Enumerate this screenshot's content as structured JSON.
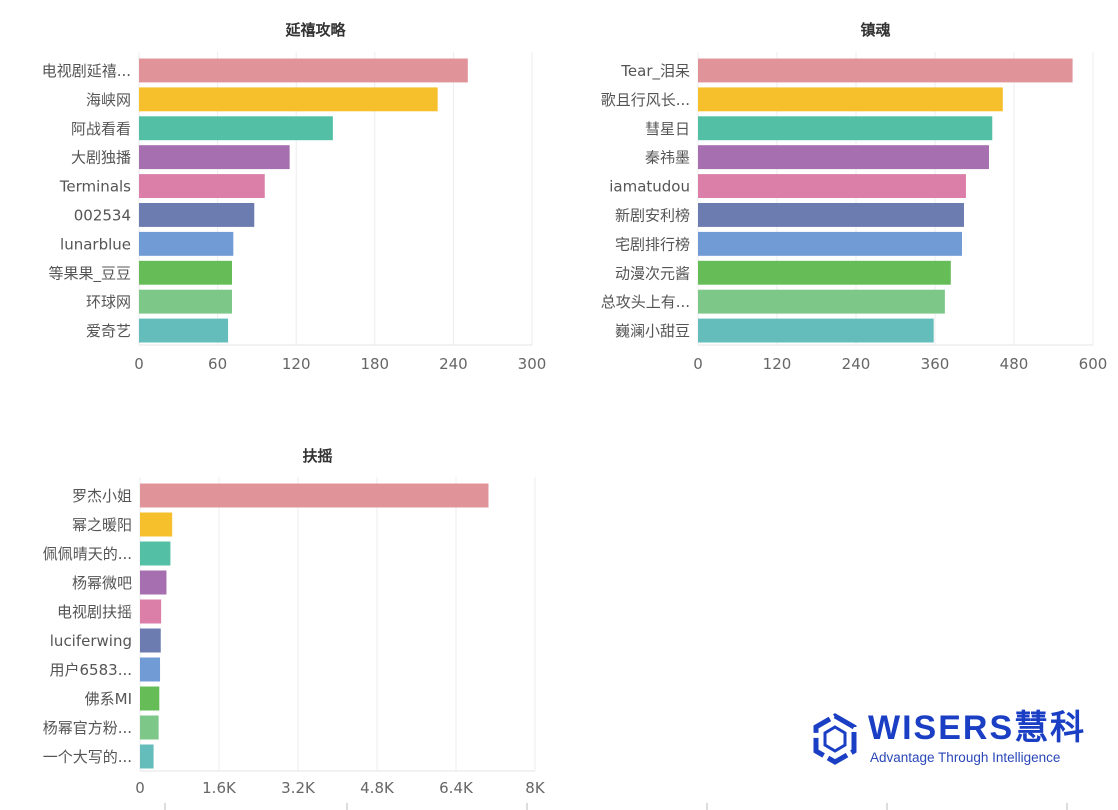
{
  "colors": [
    "#e0949a",
    "#f6c02c",
    "#53c0a6",
    "#a66fb0",
    "#db7fa9",
    "#6c7bb0",
    "#709bd4",
    "#66bd58",
    "#7dc888",
    "#64bcbb"
  ],
  "chart_data": [
    {
      "type": "bar",
      "orientation": "horizontal",
      "title": "延禧攻略",
      "categories": [
        "电视剧延禧...",
        "海峡网",
        "阿战看看",
        "大剧独播",
        "Terminals",
        "002534",
        "lunarblue",
        "等果果_豆豆",
        "环球网",
        "爱奇艺"
      ],
      "values": [
        251,
        228,
        148,
        115,
        96,
        88,
        72,
        71,
        71,
        68
      ],
      "xlim": [
        0,
        300
      ],
      "ticks": [
        0,
        60,
        120,
        180,
        240,
        300
      ],
      "tick_labels": [
        "0",
        "60",
        "120",
        "180",
        "240",
        "300"
      ],
      "grid": true
    },
    {
      "type": "bar",
      "orientation": "horizontal",
      "title": "镇魂",
      "categories": [
        "Tear_泪呆",
        "歌且行风长...",
        "彗星日",
        "秦祎墨",
        "iamatudou",
        "新剧安利榜",
        "宅剧排行榜",
        "动漫次元酱",
        "总攻头上有...",
        "巍澜小甜豆"
      ],
      "values": [
        569,
        463,
        447,
        442,
        407,
        404,
        401,
        384,
        375,
        358
      ],
      "xlim": [
        0,
        600
      ],
      "ticks": [
        0,
        120,
        240,
        360,
        480,
        600
      ],
      "tick_labels": [
        "0",
        "120",
        "240",
        "360",
        "480",
        "600"
      ],
      "grid": true
    },
    {
      "type": "bar",
      "orientation": "horizontal",
      "title": "扶摇",
      "categories": [
        "罗杰小姐",
        "幂之暖阳",
        "佩佩晴天的...",
        "杨幂微吧",
        "电视剧扶摇",
        "luciferwing",
        "用户6583...",
        "佛系MI",
        "杨幂官方粉...",
        "一个大写的..."
      ],
      "values": [
        7058,
        652,
        616,
        536,
        428,
        420,
        406,
        391,
        377,
        275
      ],
      "xlim": [
        0,
        8000
      ],
      "ticks": [
        0,
        1600,
        3200,
        4800,
        6400,
        8000
      ],
      "tick_labels": [
        "0",
        "1.6K",
        "3.2K",
        "4.8K",
        "6.4K",
        "8K"
      ],
      "grid": true
    }
  ],
  "logo": {
    "brand": "WISERS慧科",
    "tagline": "Advantage Through Intelligence"
  }
}
